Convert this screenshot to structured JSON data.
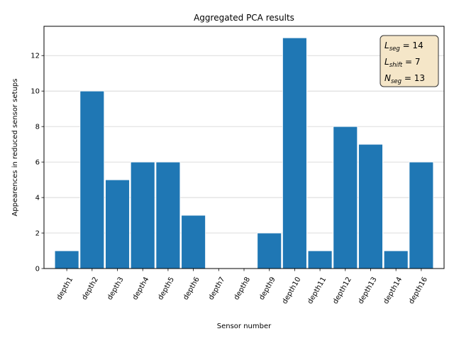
{
  "chart_data": {
    "type": "bar",
    "title": "Aggregated PCA results",
    "xlabel": "Sensor number",
    "ylabel": "Appearences in reduced sensor setups",
    "categories": [
      "depth1",
      "depth2",
      "depth3",
      "depth4",
      "depth5",
      "depth6",
      "depth7",
      "depth8",
      "depth9",
      "depth10",
      "depth11",
      "depth12",
      "depth13",
      "depth14",
      "depth16"
    ],
    "values": [
      1,
      10,
      5,
      6,
      6,
      3,
      0,
      0,
      2,
      13,
      1,
      8,
      7,
      1,
      6
    ],
    "ylim": [
      0,
      13.65
    ],
    "yticks": [
      0,
      2,
      4,
      6,
      8,
      10,
      12
    ],
    "grid": "y",
    "bar_color": "#1f77b4",
    "annotation": {
      "placement": "top-right",
      "lines": [
        {
          "symbol": "L",
          "sub": "seg",
          "rest": " = 14"
        },
        {
          "symbol": "L",
          "sub": "shift",
          "rest": " = 7"
        },
        {
          "symbol": "N",
          "sub": "seg",
          "rest": " = 13"
        }
      ],
      "box_fill": "#f5e6c8"
    }
  }
}
